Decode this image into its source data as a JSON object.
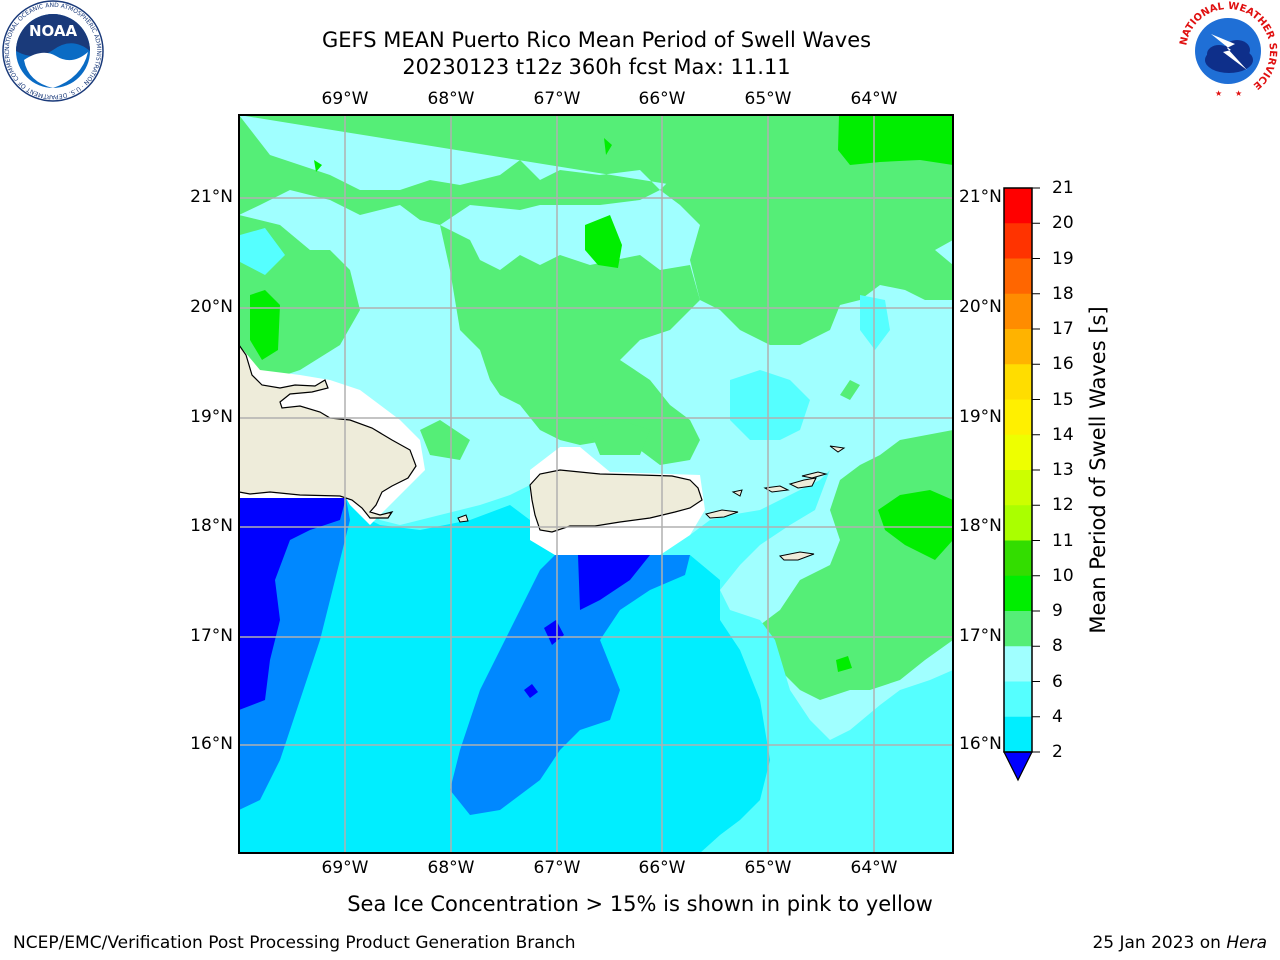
{
  "header": {
    "title_line1": "GEFS MEAN Puerto Rico Mean Period of Swell Waves",
    "title_line2": "20230123 t12z 360h fcst   Max: 11.11"
  },
  "map": {
    "lon_labels": [
      "69°W",
      "68°W",
      "67°W",
      "66°W",
      "65°W",
      "64°W"
    ],
    "lat_labels": [
      "21°N",
      "20°N",
      "19°N",
      "18°N",
      "17°N",
      "16°N"
    ],
    "land_color": "#eeecda",
    "grid_color": "#b0b0b0"
  },
  "colorbar": {
    "title": "Mean Period of Swell Waves [s]",
    "tick_labels": [
      "21",
      "20",
      "19",
      "18",
      "17",
      "16",
      "15",
      "14",
      "13",
      "12",
      "11",
      "10",
      "9",
      "8",
      "6",
      "4",
      "2"
    ],
    "colors": [
      "#ff0000",
      "#ff3300",
      "#ff6600",
      "#ff8c00",
      "#ffb300",
      "#ffdd00",
      "#fff000",
      "#eeff00",
      "#ccff00",
      "#aaff00",
      "#33dd00",
      "#00ee00",
      "#55ee77",
      "#a0ffff",
      "#55ffff",
      "#00eeff",
      "#0088ff",
      "#0000ff"
    ]
  },
  "footer": {
    "note": "Sea Ice Concentration > 15% is shown in pink to yellow",
    "credit": "NCEP/EMC/Verification Post Processing Product Generation Branch",
    "date_prefix": "25 Jan 2023 on ",
    "date_host": "Hera"
  },
  "logos": {
    "noaa_text": "NOAA",
    "noaa_ring_text": "NATIONAL OCEANIC AND ATMOSPHERIC ADMINISTRATION · U.S. DEPARTMENT OF COMMERCE",
    "nws_ring_text": "NATIONAL WEATHER SERVICE"
  }
}
